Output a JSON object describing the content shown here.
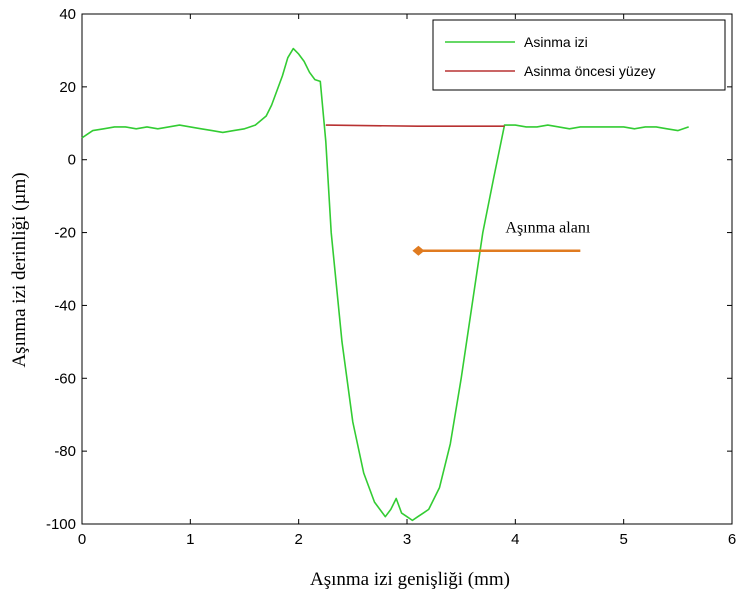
{
  "chart_data": {
    "type": "line",
    "xlabel": "Aşınma izi genişliği (mm)",
    "ylabel": "Aşınma izi derinliği (µm)",
    "xlim": [
      0,
      6
    ],
    "ylim": [
      -100,
      40
    ],
    "xticks": [
      0,
      1,
      2,
      3,
      4,
      5,
      6
    ],
    "yticks": [
      40,
      20,
      0,
      -20,
      -40,
      -60,
      -80,
      -100
    ],
    "grid": false,
    "legend_position": "top-right",
    "series": [
      {
        "name": "Asinma izi",
        "color": "#33cc33",
        "x": [
          0,
          0.05,
          0.1,
          0.2,
          0.3,
          0.4,
          0.5,
          0.6,
          0.7,
          0.8,
          0.9,
          1.0,
          1.1,
          1.2,
          1.3,
          1.4,
          1.5,
          1.6,
          1.7,
          1.75,
          1.8,
          1.85,
          1.9,
          1.95,
          2.0,
          2.05,
          2.1,
          2.15,
          2.2,
          2.25,
          2.3,
          2.4,
          2.5,
          2.6,
          2.7,
          2.8,
          2.85,
          2.9,
          2.95,
          3.0,
          3.05,
          3.1,
          3.15,
          3.2,
          3.3,
          3.4,
          3.5,
          3.6,
          3.7,
          3.8,
          3.9,
          4.0,
          4.1,
          4.2,
          4.3,
          4.4,
          4.5,
          4.6,
          4.7,
          4.8,
          4.9,
          5.0,
          5.1,
          5.2,
          5.3,
          5.4,
          5.5,
          5.6
        ],
        "y": [
          6,
          7,
          8,
          8.5,
          9,
          9,
          8.5,
          9,
          8.5,
          9,
          9.5,
          9,
          8.5,
          8,
          7.5,
          8,
          8.5,
          9.5,
          12,
          15,
          19,
          23,
          28,
          30.5,
          29,
          27,
          24,
          22,
          21.5,
          5,
          -20,
          -50,
          -72,
          -86,
          -94,
          -98,
          -96,
          -93,
          -97,
          -98,
          -99,
          -98,
          -97,
          -96,
          -90,
          -78,
          -60,
          -40,
          -20,
          -5,
          9.5,
          9.5,
          9,
          9,
          9.5,
          9,
          8.5,
          9,
          9,
          9,
          9,
          9,
          8.5,
          9,
          9,
          8.5,
          8,
          9
        ]
      },
      {
        "name": "Asinma öncesi yüzey",
        "color": "#b83232",
        "x": [
          2.25,
          3.1,
          3.9
        ],
        "y": [
          9.5,
          9.2,
          9.2
        ]
      }
    ],
    "annotation": {
      "text": "Aşınma alanı",
      "arrow_from": [
        4.6,
        -25
      ],
      "arrow_to": [
        3.05,
        -25
      ],
      "color": "#e07b20"
    }
  }
}
